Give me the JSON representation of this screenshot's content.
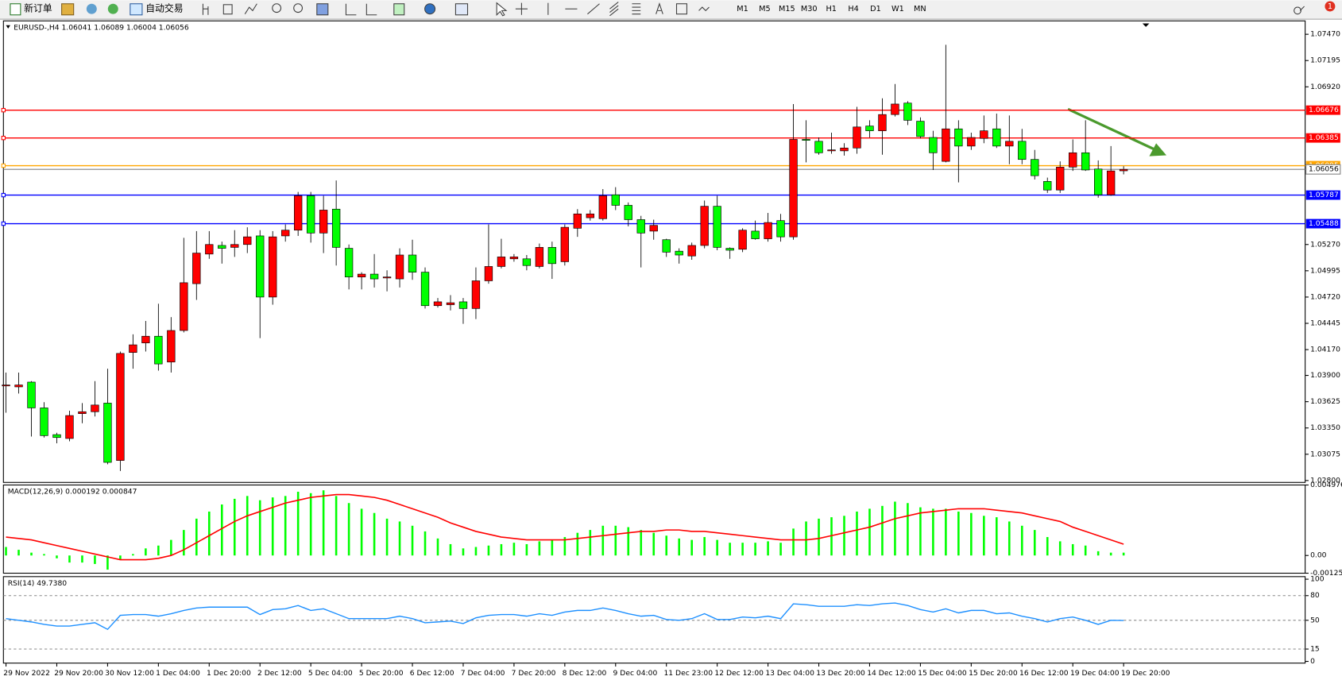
{
  "toolbar": {
    "new_order": "新订单",
    "auto_trading": "自动交易",
    "timeframes": [
      "M1",
      "M5",
      "M15",
      "M30",
      "H1",
      "H4",
      "D1",
      "W1",
      "MN"
    ],
    "notifications": 1
  },
  "chart_data": [
    {
      "type": "candlestick",
      "title": "EURUSD-,H4  1.06041 1.06089 1.06004 1.06056",
      "categories": [
        "29 Nov 2022",
        null,
        null,
        null,
        "29 Nov 20:00",
        null,
        null,
        null,
        "30 Nov 12:00",
        null,
        null,
        null,
        "1 Dec 04:00",
        null,
        null,
        null,
        "1 Dec 20:00",
        null,
        null,
        null,
        "2 Dec 12:00",
        null,
        null,
        null,
        "5 Dec 04:00",
        null,
        null,
        null,
        "5 Dec 20:00",
        null,
        null,
        null,
        "6 Dec 12:00",
        null,
        null,
        null,
        "7 Dec 04:00",
        null,
        null,
        null,
        "7 Dec 20:00",
        null,
        null,
        null,
        "8 Dec 12:00",
        null,
        null,
        null,
        "9 Dec 04:00",
        null,
        null,
        null,
        "11 Dec 23:00",
        null,
        null,
        null,
        "12 Dec 12:00",
        null,
        null,
        null,
        "13 Dec 04:00",
        null,
        null,
        null,
        "13 Dec 20:00",
        null,
        null,
        null,
        "14 Dec 12:00",
        null,
        null,
        null,
        "15 Dec 04:00",
        null,
        null,
        null,
        "15 Dec 20:00",
        null,
        null,
        null,
        "16 Dec 12:00",
        null,
        null,
        null,
        "19 Dec 04:00",
        null,
        null,
        null,
        "19 Dec 20:00"
      ],
      "open": [
        1.0379,
        1.0378,
        1.0383,
        1.0356,
        1.0328,
        1.0324,
        1.035,
        1.0352,
        1.0361,
        1.0301,
        1.0414,
        1.0424,
        1.0431,
        1.0404,
        1.0437,
        1.0486,
        1.0517,
        1.0526,
        1.0524,
        1.0527,
        1.0536,
        1.0472,
        1.0536,
        1.0542,
        1.0578,
        1.0539,
        1.0564,
        1.0523,
        1.0493,
        1.0496,
        1.0492,
        1.0491,
        1.0516,
        1.0498,
        1.0463,
        1.0464,
        1.0467,
        1.046,
        1.0489,
        1.0504,
        1.0512,
        1.0512,
        1.0504,
        1.0524,
        1.0509,
        1.0544,
        1.0555,
        1.0554,
        1.0579,
        1.0568,
        1.0553,
        1.0541,
        1.0532,
        1.052,
        1.0515,
        1.0526,
        1.0567,
        1.0523,
        1.0522,
        1.0541,
        1.0533,
        1.0552,
        1.0535,
        1.0637,
        1.0635,
        1.0625,
        1.0625,
        1.0628,
        1.0651,
        1.0646,
        1.0663,
        1.0675,
        1.0656,
        1.0639,
        1.0614,
        1.0648,
        1.063,
        1.0638,
        1.0648,
        1.063,
        1.0635,
        1.0616,
        1.0593,
        1.0584,
        1.0608,
        1.0623,
        1.0606,
        1.0579,
        1.06041
      ],
      "high": [
        1.0393,
        1.0393,
        1.0384,
        1.0362,
        1.033,
        1.0353,
        1.0361,
        1.0384,
        1.0397,
        1.0415,
        1.0433,
        1.0447,
        1.0465,
        1.0451,
        1.0534,
        1.0541,
        1.0541,
        1.053,
        1.0542,
        1.0545,
        1.0542,
        1.0541,
        1.0548,
        1.0582,
        1.0582,
        1.0578,
        1.0594,
        1.0527,
        1.0498,
        1.0517,
        1.05,
        1.0523,
        1.0532,
        1.0503,
        1.0471,
        1.0474,
        1.0471,
        1.0503,
        1.0548,
        1.0533,
        1.0517,
        1.0516,
        1.0528,
        1.053,
        1.0548,
        1.0564,
        1.0563,
        1.0585,
        1.0587,
        1.0571,
        1.0557,
        1.0553,
        1.0533,
        1.0523,
        1.0529,
        1.0573,
        1.0578,
        1.0524,
        1.0544,
        1.0552,
        1.056,
        1.0559,
        1.0674,
        1.0657,
        1.0639,
        1.0644,
        1.0633,
        1.0671,
        1.0657,
        1.068,
        1.0695,
        1.0677,
        1.066,
        1.0646,
        1.0736,
        1.0657,
        1.0644,
        1.0662,
        1.0664,
        1.0662,
        1.0648,
        1.0626,
        1.0597,
        1.0614,
        1.0637,
        1.0657,
        1.0615,
        1.063,
        1.06089
      ],
      "low": [
        1.0351,
        1.0371,
        1.0326,
        1.0325,
        1.0319,
        1.0321,
        1.034,
        1.0347,
        1.0297,
        1.029,
        1.0397,
        1.0415,
        1.0395,
        1.0393,
        1.0435,
        1.0469,
        1.0512,
        1.0507,
        1.0514,
        1.0518,
        1.0429,
        1.0464,
        1.053,
        1.0536,
        1.0529,
        1.0518,
        1.0505,
        1.048,
        1.048,
        1.0482,
        1.0478,
        1.0482,
        1.049,
        1.046,
        1.0461,
        1.0458,
        1.0444,
        1.0449,
        1.0486,
        1.0502,
        1.0509,
        1.05,
        1.0502,
        1.0491,
        1.0505,
        1.0535,
        1.0552,
        1.0552,
        1.0563,
        1.0546,
        1.0503,
        1.0532,
        1.0514,
        1.0507,
        1.0511,
        1.0523,
        1.0521,
        1.0512,
        1.0519,
        1.0532,
        1.053,
        1.053,
        1.0532,
        1.0613,
        1.0621,
        1.0622,
        1.062,
        1.0622,
        1.0639,
        1.0621,
        1.0661,
        1.0652,
        1.0638,
        1.0605,
        1.0613,
        1.0592,
        1.0626,
        1.0633,
        1.0628,
        1.0611,
        1.0611,
        1.0595,
        1.0581,
        1.0581,
        1.0604,
        1.0604,
        1.0576,
        1.0578,
        1.06004
      ],
      "close": [
        1.038,
        1.038,
        1.0356,
        1.0327,
        1.0325,
        1.0348,
        1.0352,
        1.0359,
        1.0299,
        1.0413,
        1.0422,
        1.0431,
        1.0402,
        1.0437,
        1.0487,
        1.0518,
        1.0527,
        1.0523,
        1.0527,
        1.0535,
        1.0472,
        1.0535,
        1.0542,
        1.0578,
        1.0539,
        1.0563,
        1.0524,
        1.0493,
        1.0496,
        1.0491,
        1.0493,
        1.0516,
        1.0498,
        1.0463,
        1.0467,
        1.0466,
        1.046,
        1.0489,
        1.0504,
        1.0514,
        1.0514,
        1.0505,
        1.0524,
        1.0507,
        1.0545,
        1.0559,
        1.0559,
        1.0578,
        1.0568,
        1.0553,
        1.0539,
        1.0547,
        1.0519,
        1.0516,
        1.0526,
        1.0567,
        1.0524,
        1.0521,
        1.0542,
        1.0533,
        1.055,
        1.0535,
        1.0637,
        1.0636,
        1.0623,
        1.0626,
        1.0628,
        1.065,
        1.0646,
        1.0663,
        1.0674,
        1.0657,
        1.064,
        1.0623,
        1.0648,
        1.063,
        1.0639,
        1.0646,
        1.063,
        1.0635,
        1.0616,
        1.0599,
        1.0584,
        1.0608,
        1.0623,
        1.0605,
        1.0579,
        1.0604,
        1.06056
      ],
      "up_color": "#ff0000",
      "down_color": "#00ff00",
      "ylim": [
        1.0278,
        1.0761
      ],
      "yticks": [
        {
          "value": 1.0747,
          "label": "1.07470"
        },
        1.07195,
        {
          "value": 1.0692,
          "label": "1.06920"
        },
        {
          "value": 1.0527,
          "label": "1.05270"
        },
        1.04995,
        {
          "value": 1.0472,
          "label": "1.04720"
        },
        1.04445,
        {
          "value": 1.0417,
          "label": "1.04170"
        },
        {
          "value": 1.039,
          "label": "1.03900"
        },
        1.03625,
        {
          "value": 1.0335,
          "label": "1.03350"
        },
        1.03075,
        {
          "value": 1.028,
          "label": "1.02800"
        }
      ],
      "hlines": [
        {
          "value": 1.06676,
          "color": "#ff0000"
        },
        {
          "value": 1.06385,
          "color": "#ff0000"
        },
        {
          "value": 1.06095,
          "color": "#ffa500"
        },
        {
          "value": 1.05787,
          "color": "#0000ff"
        },
        {
          "value": 1.05488,
          "color": "#0000ff"
        }
      ],
      "price_line_color": "#808080"
    },
    {
      "type": "macd",
      "title": "MACD(12,26,9) 0.000192 0.000847",
      "histogram": {
        "color": "#00ff00",
        "values": [
          0.0006,
          0.0004,
          0.0002,
          0.0001,
          -0.0002,
          -0.0005,
          -0.0005,
          -0.0006,
          -0.001,
          -0.0003,
          0.0001,
          0.0005,
          0.0007,
          0.0011,
          0.0018,
          0.0026,
          0.0031,
          0.0036,
          0.004,
          0.0042,
          0.0039,
          0.0041,
          0.0042,
          0.0045,
          0.0044,
          0.0046,
          0.0042,
          0.0037,
          0.0033,
          0.003,
          0.0026,
          0.0024,
          0.0021,
          0.0017,
          0.0012,
          0.0008,
          0.0005,
          0.0006,
          0.0007,
          0.0008,
          0.0009,
          0.0008,
          0.001,
          0.0011,
          0.0013,
          0.0016,
          0.0018,
          0.0021,
          0.0021,
          0.002,
          0.0018,
          0.0016,
          0.0014,
          0.0012,
          0.0011,
          0.0013,
          0.0011,
          0.0009,
          0.0009,
          0.0009,
          0.001,
          0.0009,
          0.0019,
          0.0024,
          0.0026,
          0.0027,
          0.0028,
          0.0031,
          0.0033,
          0.0035,
          0.0038,
          0.0037,
          0.0034,
          0.0033,
          0.0033,
          0.0031,
          0.003,
          0.0028,
          0.0027,
          0.0024,
          0.0021,
          0.0018,
          0.0013,
          0.001,
          0.0008,
          0.0007,
          0.0003,
          0.0002,
          0.0002
        ]
      },
      "signal": {
        "color": "#ff0000",
        "values": [
          0.0013,
          0.0012,
          0.0011,
          0.0009,
          0.0007,
          0.0005,
          0.0003,
          0.0001,
          -0.0001,
          -0.0003,
          -0.0003,
          -0.0003,
          -0.0002,
          0,
          0.0004,
          0.0009,
          0.0014,
          0.0019,
          0.0024,
          0.0028,
          0.0031,
          0.0034,
          0.0037,
          0.0039,
          0.0041,
          0.0042,
          0.0043,
          0.0043,
          0.0042,
          0.0041,
          0.0039,
          0.0036,
          0.0033,
          0.003,
          0.0027,
          0.0023,
          0.002,
          0.0017,
          0.0015,
          0.0013,
          0.0012,
          0.0011,
          0.0011,
          0.0011,
          0.0011,
          0.0012,
          0.0013,
          0.0014,
          0.0015,
          0.0016,
          0.0017,
          0.0017,
          0.0018,
          0.0018,
          0.0017,
          0.0017,
          0.0016,
          0.0015,
          0.0014,
          0.0013,
          0.0012,
          0.0011,
          0.0011,
          0.0011,
          0.0012,
          0.0014,
          0.0016,
          0.0018,
          0.002,
          0.0023,
          0.0026,
          0.0028,
          0.003,
          0.0031,
          0.0032,
          0.0033,
          0.0033,
          0.0033,
          0.0032,
          0.0031,
          0.003,
          0.0028,
          0.0026,
          0.0024,
          0.002,
          0.0017,
          0.0014,
          0.0011,
          0.0008
        ]
      },
      "ylim": [
        -0.001251,
        0.004976
      ],
      "yticks": [
        0.004976,
        {
          "value": 0,
          "label": "0.00"
        },
        -0.001251
      ]
    },
    {
      "type": "rsi",
      "title": "RSI(14) 49.7380",
      "color": "#1e90ff",
      "values": [
        52,
        50,
        48,
        45,
        43,
        43,
        45,
        47,
        39,
        56,
        57,
        57,
        55,
        58,
        62,
        65,
        66,
        66,
        66,
        66,
        57,
        63,
        64,
        68,
        62,
        64,
        58,
        52,
        52,
        52,
        52,
        55,
        52,
        47,
        48,
        49,
        46,
        53,
        56,
        57,
        57,
        55,
        58,
        56,
        60,
        62,
        62,
        65,
        62,
        58,
        55,
        56,
        51,
        50,
        52,
        58,
        51,
        51,
        54,
        53,
        55,
        52,
        70,
        69,
        67,
        67,
        67,
        69,
        68,
        70,
        71,
        68,
        63,
        60,
        64,
        59,
        62,
        62,
        58,
        59,
        55,
        52,
        48,
        52,
        54,
        50,
        45,
        50,
        49.738
      ],
      "ylim": [
        0,
        100
      ],
      "yticks": [
        100,
        80,
        50,
        15,
        0
      ],
      "level_lines": true
    }
  ]
}
